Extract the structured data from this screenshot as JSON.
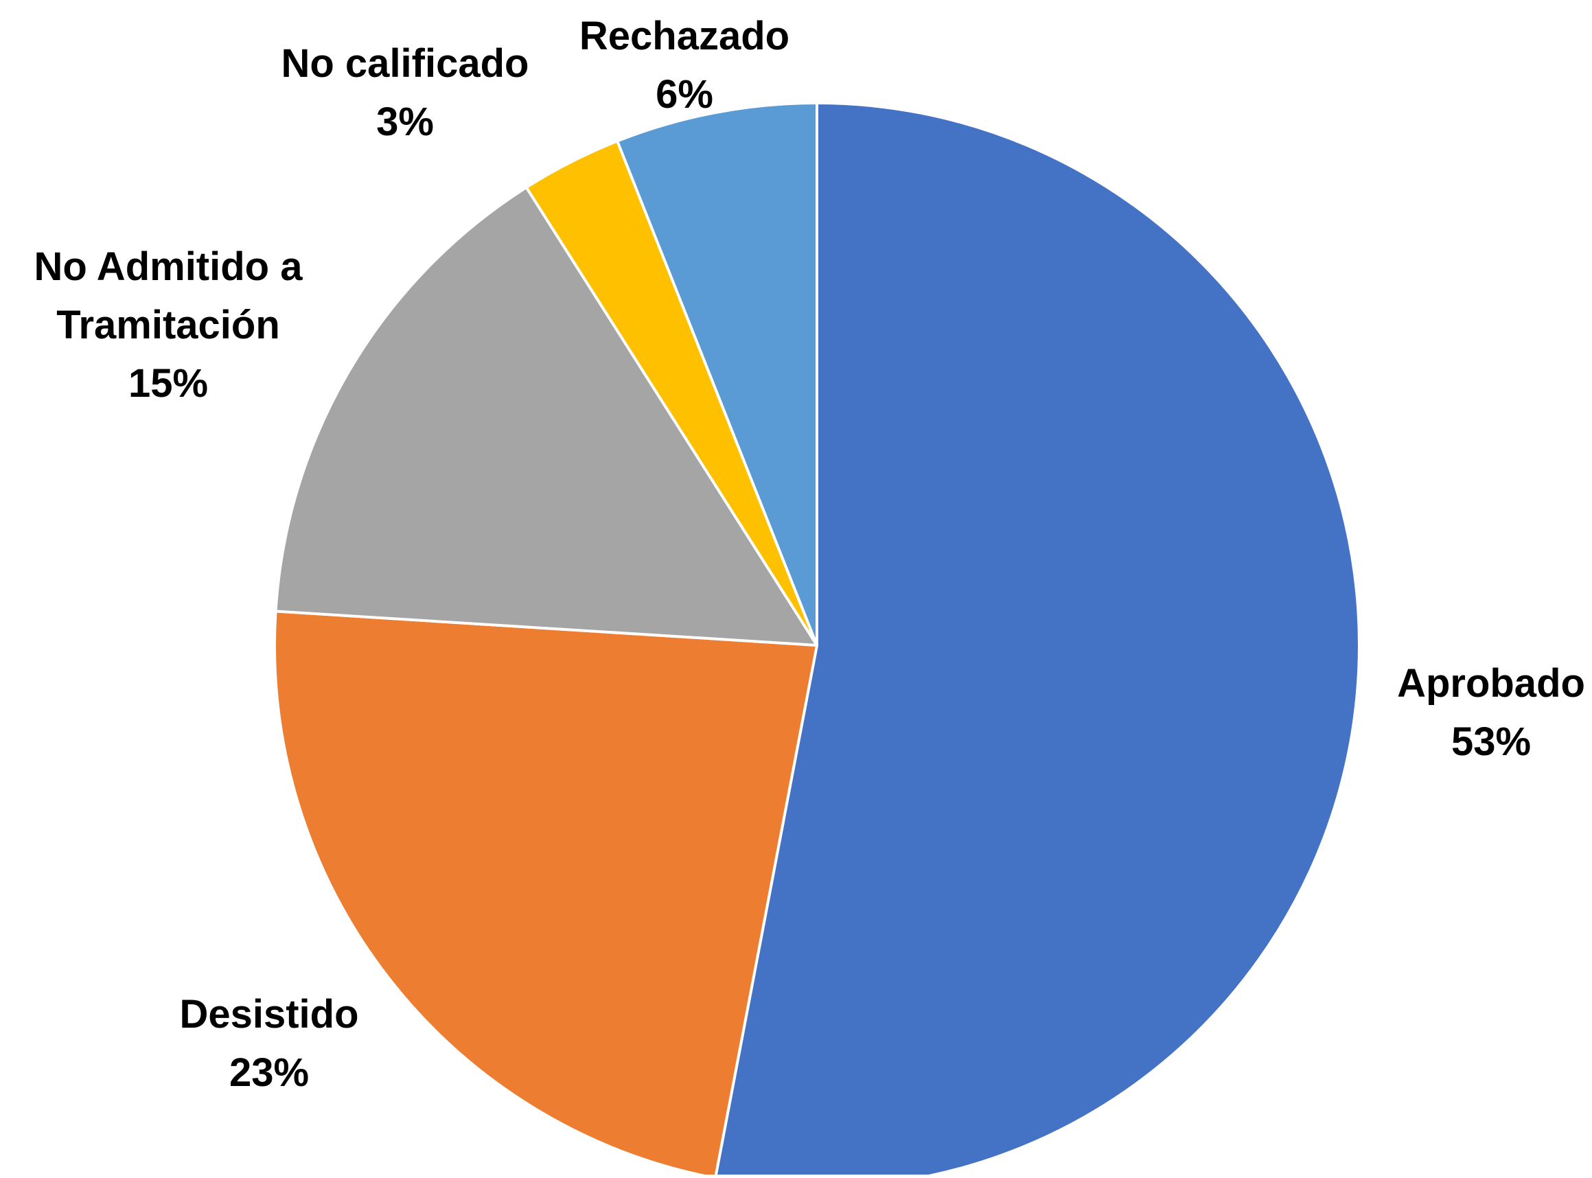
{
  "chart_data": {
    "type": "pie",
    "title": "",
    "slices": [
      {
        "label": "Aprobado",
        "label_lines": [
          "Aprobado"
        ],
        "value": 53,
        "value_label": "53%",
        "color": "#4472C4"
      },
      {
        "label": "Desistido",
        "label_lines": [
          "Desistido"
        ],
        "value": 23,
        "value_label": "23%",
        "color": "#ED7D31"
      },
      {
        "label": "No Admitido a Tramitación",
        "label_lines": [
          "No Admitido a",
          "Tramitación"
        ],
        "value": 15,
        "value_label": "15%",
        "color": "#A5A5A5"
      },
      {
        "label": "No calificado",
        "label_lines": [
          "No calificado"
        ],
        "value": 3,
        "value_label": "3%",
        "color": "#FFC000"
      },
      {
        "label": "Rechazado",
        "label_lines": [
          "Rechazado"
        ],
        "value": 6,
        "value_label": "6%",
        "color": "#5B9BD5"
      }
    ],
    "start_angle": "12 o'clock",
    "direction": "clockwise",
    "legend": "none",
    "data_labels": "outside, category name and percentage"
  }
}
